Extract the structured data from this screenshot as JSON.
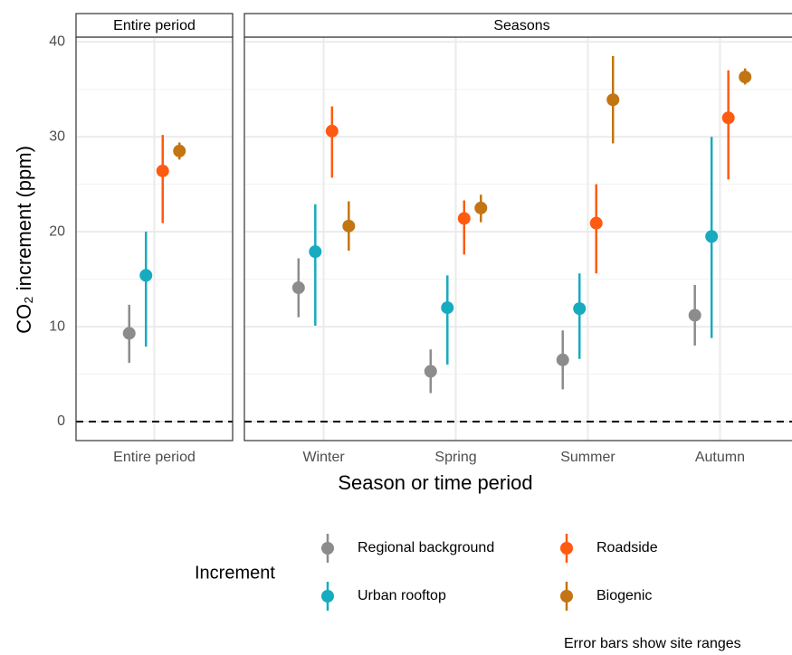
{
  "chart_data": {
    "type": "pointrange",
    "xlabel": "Season or time period",
    "ylabel": "CO₂ increment (ppm)",
    "ylim": [
      -2,
      40.5
    ],
    "yticks": [
      0,
      10,
      20,
      30,
      40
    ],
    "minor_yticks": [
      5,
      15,
      25,
      35
    ],
    "grid": true,
    "reference_line": 0,
    "legend_title": "Increment",
    "legend_position": "bottom",
    "caption": "Error bars show site ranges",
    "series": [
      {
        "name": "Regional background",
        "color": "#8c8c8c"
      },
      {
        "name": "Urban rooftop",
        "color": "#17abbf"
      },
      {
        "name": "Roadside",
        "color": "#ff5a12"
      },
      {
        "name": "Biogenic",
        "color": "#c27512"
      }
    ],
    "facets": [
      {
        "title": "Entire period",
        "categories": [
          "Entire period"
        ],
        "series": [
          {
            "values": [
              9.3
            ],
            "low": [
              6.2
            ],
            "high": [
              12.3
            ]
          },
          {
            "values": [
              15.4
            ],
            "low": [
              7.9
            ],
            "high": [
              20.0
            ]
          },
          {
            "values": [
              26.4
            ],
            "low": [
              20.9
            ],
            "high": [
              30.2
            ]
          },
          {
            "values": [
              28.5
            ],
            "low": [
              27.6
            ],
            "high": [
              29.4
            ]
          }
        ]
      },
      {
        "title": "Seasons",
        "categories": [
          "Winter",
          "Spring",
          "Summer",
          "Autumn"
        ],
        "series": [
          {
            "values": [
              14.1,
              5.3,
              6.5,
              11.2
            ],
            "low": [
              11.0,
              3.0,
              3.4,
              8.0
            ],
            "high": [
              17.2,
              7.6,
              9.6,
              14.4
            ]
          },
          {
            "values": [
              17.9,
              12.0,
              11.9,
              19.5
            ],
            "low": [
              10.1,
              6.0,
              6.6,
              8.8
            ],
            "high": [
              22.9,
              15.4,
              15.6,
              30.0
            ]
          },
          {
            "values": [
              30.6,
              21.4,
              20.9,
              32.0
            ],
            "low": [
              25.7,
              17.6,
              15.6,
              25.5
            ],
            "high": [
              33.2,
              23.3,
              25.0,
              37.0
            ]
          },
          {
            "values": [
              20.6,
              22.5,
              33.9,
              36.3
            ],
            "low": [
              18.0,
              21.0,
              29.3,
              35.5
            ],
            "high": [
              23.2,
              23.9,
              38.5,
              37.2
            ]
          }
        ]
      }
    ]
  }
}
